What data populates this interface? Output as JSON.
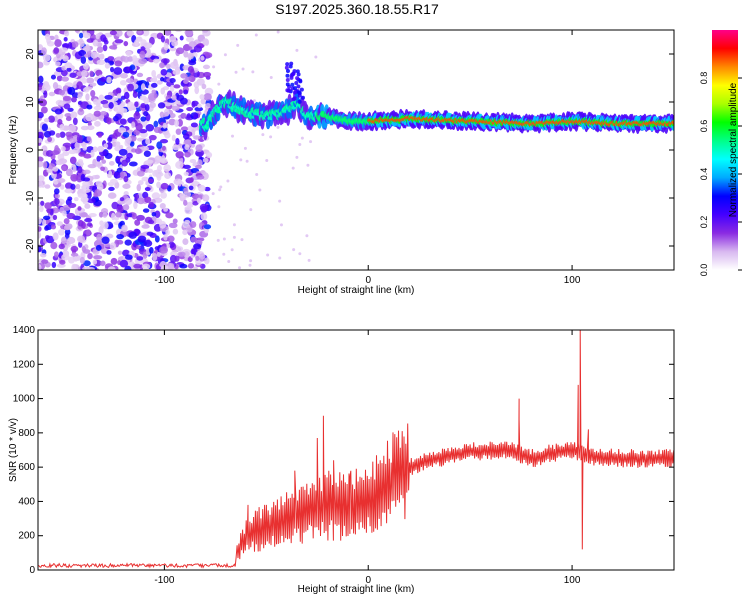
{
  "figure": {
    "title": "S197.2025.360.18.55.R17"
  },
  "chart_data": [
    {
      "type": "heatmap",
      "xlabel": "Height of straight line (km)",
      "ylabel": "Frequency (Hz)",
      "xlim": [
        -162,
        150
      ],
      "ylim": [
        -25,
        25
      ],
      "xticks": [
        -100,
        0,
        100
      ],
      "yticks": [
        -20,
        -10,
        0,
        10,
        20
      ],
      "colorbar": {
        "label": "Normalized spectral amplitude",
        "range": [
          0,
          1
        ],
        "ticks": [
          0.0,
          0.2,
          0.4,
          0.6,
          0.8
        ],
        "colors": [
          "#ffffff",
          "#d8b8f0",
          "#8a2be2",
          "#4400ff",
          "#0000ff",
          "#00aaff",
          "#00ffff",
          "#00ff88",
          "#00ff00",
          "#aaff00",
          "#ffff00",
          "#ff8800",
          "#ff0000",
          "#ff0088"
        ]
      },
      "ridge": {
        "description_points": [
          [
            -80,
            5
          ],
          [
            -75,
            8
          ],
          [
            -70,
            10
          ],
          [
            -60,
            8
          ],
          [
            -50,
            7
          ],
          [
            -40,
            8
          ],
          [
            -35,
            10
          ],
          [
            -30,
            7
          ],
          [
            -20,
            7
          ],
          [
            -10,
            6
          ],
          [
            0,
            6
          ],
          [
            20,
            6.5
          ],
          [
            50,
            6
          ],
          [
            80,
            5.5
          ],
          [
            100,
            6
          ],
          [
            120,
            5.5
          ],
          [
            150,
            5.5
          ]
        ],
        "noise_region_x": [
          -162,
          -80
        ]
      }
    },
    {
      "type": "line",
      "xlabel": "Height of straight line (km)",
      "ylabel": "SNR (10 * v/v)",
      "xlim": [
        -162,
        150
      ],
      "ylim": [
        0,
        1400
      ],
      "xticks": [
        -100,
        0,
        100
      ],
      "yticks": [
        0,
        200,
        400,
        600,
        800,
        1000,
        1200,
        1400
      ],
      "series": [
        {
          "color": "#e83030",
          "envelope": [
            [
              -162,
              25
            ],
            [
              -80,
              30
            ],
            [
              -65,
              100
            ],
            [
              -58,
              220
            ],
            [
              -50,
              250
            ],
            [
              -40,
              300
            ],
            [
              -30,
              350
            ],
            [
              -20,
              380
            ],
            [
              -10,
              370
            ],
            [
              0,
              400
            ],
            [
              10,
              500
            ],
            [
              20,
              600
            ],
            [
              30,
              640
            ],
            [
              50,
              690
            ],
            [
              70,
              700
            ],
            [
              80,
              650
            ],
            [
              90,
              680
            ],
            [
              100,
              700
            ],
            [
              110,
              660
            ],
            [
              130,
              650
            ],
            [
              150,
              650
            ]
          ],
          "spikes": [
            [
              -59,
              380
            ],
            [
              -36,
              580
            ],
            [
              -25,
              770
            ],
            [
              -22,
              900
            ],
            [
              -17,
              640
            ],
            [
              -9,
              540
            ],
            [
              74,
              1000
            ],
            [
              74,
              880
            ],
            [
              103,
              1080
            ],
            [
              104,
              1420
            ],
            [
              105,
              120
            ],
            [
              108,
              820
            ]
          ]
        }
      ]
    }
  ]
}
